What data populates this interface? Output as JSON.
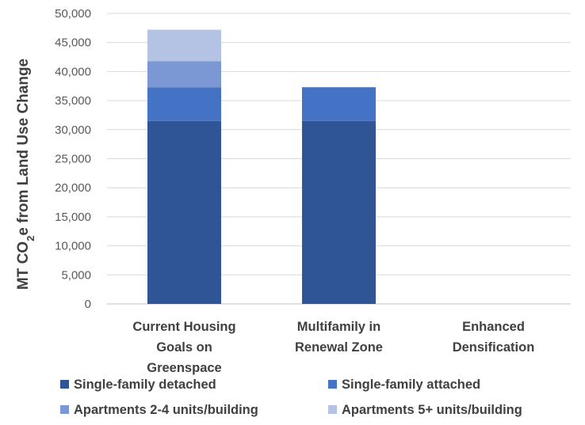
{
  "chart_data": {
    "type": "bar",
    "stacked": true,
    "categories": [
      [
        "Current Housing",
        "Goals on",
        "Greenspace"
      ],
      [
        "Multifamily in",
        "Renewal Zone"
      ],
      [
        "Enhanced",
        "Densification"
      ]
    ],
    "series": [
      {
        "name": "Single-family detached",
        "color": "#2F5597",
        "values": [
          31500,
          31500,
          0
        ]
      },
      {
        "name": "Single-family attached",
        "color": "#4472C4",
        "values": [
          5800,
          5800,
          0
        ]
      },
      {
        "name": "Apartments 2-4 units/building",
        "color": "#7C98D4",
        "values": [
          4500,
          0,
          0
        ]
      },
      {
        "name": "Apartments 5+ units/building",
        "color": "#B4C3E3",
        "values": [
          5400,
          0,
          0
        ]
      }
    ],
    "yticks": [
      "0",
      "5,000",
      "10,000",
      "15,000",
      "20,000",
      "25,000",
      "30,000",
      "35,000",
      "40,000",
      "45,000",
      "50,000"
    ],
    "ylim": [
      0,
      50000
    ],
    "ylabel": {
      "prefix": "MT CO",
      "subscript": "2",
      "suffix": "e from Land Use Change"
    },
    "xlabel": "",
    "title": "",
    "grid": true,
    "legend_position": "bottom"
  }
}
